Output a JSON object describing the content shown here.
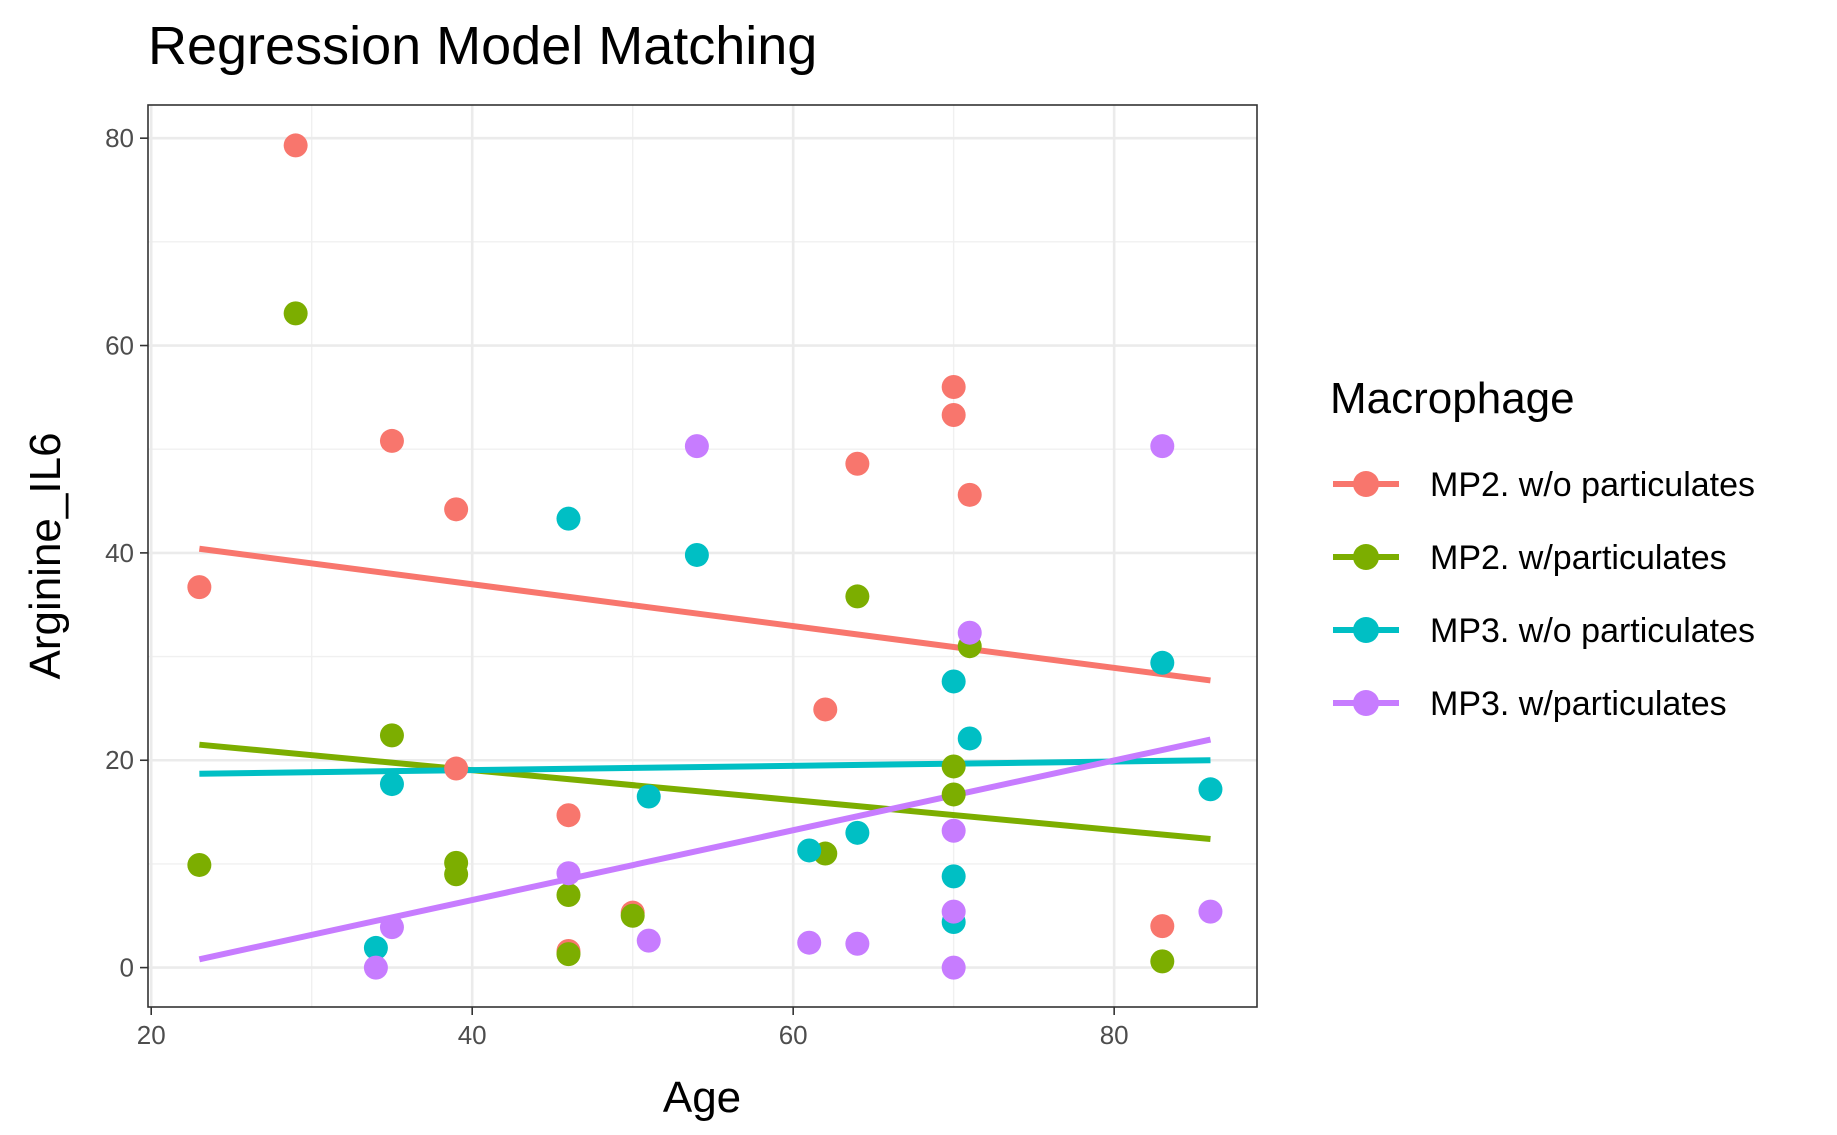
{
  "chart_data": {
    "type": "scatter",
    "title": "Regression Model Matching",
    "xlabel": "Age",
    "ylabel": "Arginine_IL6",
    "xlim": [
      19.8,
      88.9
    ],
    "ylim": [
      -3.8,
      83.2
    ],
    "x_ticks": [
      20,
      40,
      60,
      80
    ],
    "y_ticks": [
      0,
      20,
      40,
      60,
      80
    ],
    "grid": true,
    "legend": {
      "title": "Macrophage",
      "position": "right"
    },
    "series": [
      {
        "name": "MP2. w/o particulates",
        "color": "#F8766D",
        "points": [
          {
            "x": 23,
            "y": 36.7
          },
          {
            "x": 29,
            "y": 79.3
          },
          {
            "x": 35,
            "y": 50.8
          },
          {
            "x": 39,
            "y": 44.2
          },
          {
            "x": 39,
            "y": 19.2
          },
          {
            "x": 46,
            "y": 14.7
          },
          {
            "x": 46,
            "y": 1.6
          },
          {
            "x": 50,
            "y": 5.3
          },
          {
            "x": 62,
            "y": 24.9
          },
          {
            "x": 64,
            "y": 48.6
          },
          {
            "x": 70,
            "y": 56.0
          },
          {
            "x": 70,
            "y": 53.3
          },
          {
            "x": 71,
            "y": 45.6
          },
          {
            "x": 83,
            "y": 4.0
          }
        ],
        "fit": {
          "x": [
            23,
            86
          ],
          "y": [
            40.4,
            27.7
          ]
        }
      },
      {
        "name": "MP2. w/particulates",
        "color": "#7CAE00",
        "points": [
          {
            "x": 23,
            "y": 9.9
          },
          {
            "x": 29,
            "y": 63.1
          },
          {
            "x": 35,
            "y": 22.4
          },
          {
            "x": 39,
            "y": 10.1
          },
          {
            "x": 39,
            "y": 9.0
          },
          {
            "x": 46,
            "y": 7.0
          },
          {
            "x": 46,
            "y": 1.3
          },
          {
            "x": 50,
            "y": 5.0
          },
          {
            "x": 62,
            "y": 11.0
          },
          {
            "x": 64,
            "y": 35.8
          },
          {
            "x": 70,
            "y": 19.4
          },
          {
            "x": 70,
            "y": 16.7
          },
          {
            "x": 71,
            "y": 31.0
          },
          {
            "x": 83,
            "y": 0.6
          }
        ],
        "fit": {
          "x": [
            23,
            86
          ],
          "y": [
            21.5,
            12.4
          ]
        }
      },
      {
        "name": "MP3. w/o particulates",
        "color": "#00BFC4",
        "points": [
          {
            "x": 34,
            "y": 1.9
          },
          {
            "x": 35,
            "y": 17.7
          },
          {
            "x": 46,
            "y": 43.3
          },
          {
            "x": 51,
            "y": 16.5
          },
          {
            "x": 54,
            "y": 39.8
          },
          {
            "x": 61,
            "y": 11.3
          },
          {
            "x": 64,
            "y": 13.0
          },
          {
            "x": 70,
            "y": 27.6
          },
          {
            "x": 70,
            "y": 8.8
          },
          {
            "x": 70,
            "y": 4.4
          },
          {
            "x": 71,
            "y": 22.1
          },
          {
            "x": 83,
            "y": 29.4
          },
          {
            "x": 86,
            "y": 17.2
          }
        ],
        "fit": {
          "x": [
            23,
            86
          ],
          "y": [
            18.7,
            20.0
          ]
        }
      },
      {
        "name": "MP3. w/particulates",
        "color": "#C77CFF",
        "points": [
          {
            "x": 34,
            "y": 0.0
          },
          {
            "x": 35,
            "y": 3.9
          },
          {
            "x": 46,
            "y": 9.1
          },
          {
            "x": 51,
            "y": 2.6
          },
          {
            "x": 54,
            "y": 50.3
          },
          {
            "x": 61,
            "y": 2.4
          },
          {
            "x": 64,
            "y": 2.3
          },
          {
            "x": 70,
            "y": 13.2
          },
          {
            "x": 70,
            "y": 5.4
          },
          {
            "x": 70,
            "y": 0.0
          },
          {
            "x": 71,
            "y": 32.3
          },
          {
            "x": 83,
            "y": 50.3
          },
          {
            "x": 86,
            "y": 5.4
          }
        ],
        "fit": {
          "x": [
            23,
            86
          ],
          "y": [
            0.8,
            22.0
          ]
        }
      }
    ]
  }
}
